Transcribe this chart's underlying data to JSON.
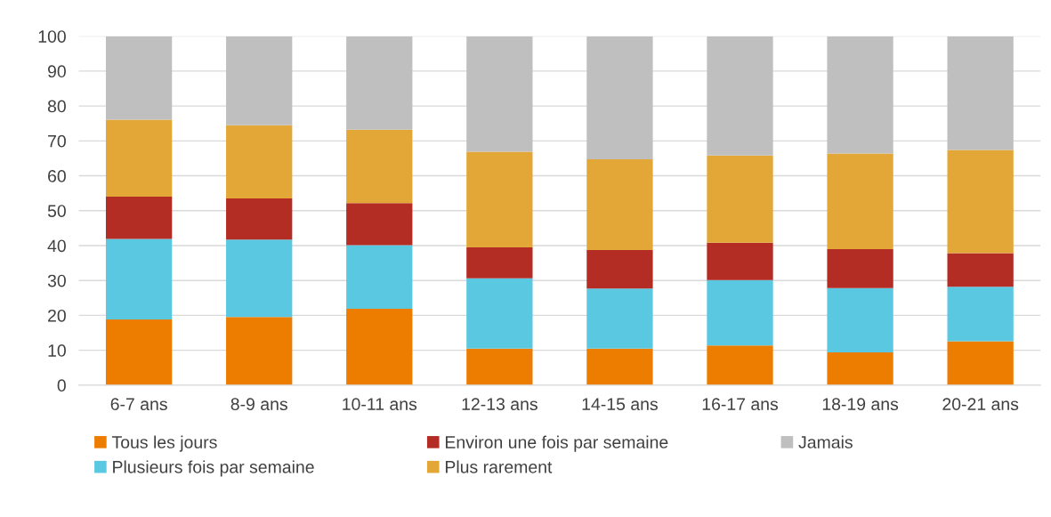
{
  "chart_data": {
    "type": "bar",
    "stacked": true,
    "categories": [
      "6-7 ans",
      "8-9 ans",
      "10-11 ans",
      "12-13 ans",
      "14-15 ans",
      "16-17 ans",
      "18-19 ans",
      "20-21 ans"
    ],
    "series": [
      {
        "name": "Tous les jours",
        "color": "#ed7d00",
        "values": [
          18.8,
          19.5,
          21.9,
          10.5,
          10.5,
          11.4,
          9.4,
          12.6
        ]
      },
      {
        "name": "Plusieurs fois par semaine",
        "color": "#5bc8e2",
        "values": [
          23.1,
          22.2,
          18.2,
          20.1,
          17.2,
          18.7,
          18.4,
          15.6
        ]
      },
      {
        "name": "Environ une fois par semaine",
        "color": "#b32d25",
        "values": [
          12.1,
          11.8,
          12.1,
          8.9,
          11.0,
          10.7,
          11.2,
          9.6
        ]
      },
      {
        "name": "Plus rarement",
        "color": "#e3a738",
        "values": [
          22.1,
          21.0,
          21.0,
          27.4,
          26.0,
          25.0,
          27.4,
          29.6
        ]
      },
      {
        "name": "Jamais",
        "color": "#bfbfbf",
        "values": [
          23.9,
          25.5,
          26.8,
          33.1,
          35.3,
          34.2,
          33.6,
          32.6
        ]
      }
    ],
    "ylim": [
      0,
      100
    ],
    "yticks": [
      0,
      10,
      20,
      30,
      40,
      50,
      60,
      70,
      80,
      90,
      100
    ],
    "grid": "y",
    "legend": "bottom"
  }
}
